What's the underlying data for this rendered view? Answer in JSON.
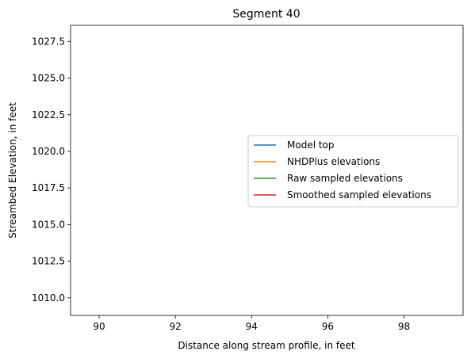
{
  "chart_data": {
    "type": "line",
    "title": "Segment 40",
    "xlabel": "Distance along stream profile, in feet",
    "ylabel": "Streambed Elevation, in feet",
    "xlim": [
      89.25,
      99.55
    ],
    "ylim": [
      1008.8,
      1028.6
    ],
    "xticks": [
      {
        "value": 90,
        "label": "90"
      },
      {
        "value": 92,
        "label": "92"
      },
      {
        "value": 94,
        "label": "94"
      },
      {
        "value": 96,
        "label": "96"
      },
      {
        "value": 98,
        "label": "98"
      }
    ],
    "yticks": [
      {
        "value": 1010.0,
        "label": "1010.0"
      },
      {
        "value": 1012.5,
        "label": "1012.5"
      },
      {
        "value": 1015.0,
        "label": "1015.0"
      },
      {
        "value": 1017.5,
        "label": "1017.5"
      },
      {
        "value": 1020.0,
        "label": "1020.0"
      },
      {
        "value": 1022.5,
        "label": "1022.5"
      },
      {
        "value": 1025.0,
        "label": "1025.0"
      },
      {
        "value": 1027.5,
        "label": "1027.5"
      }
    ],
    "grid": false,
    "legend_position": "center-right",
    "series": [
      {
        "name": "Model top",
        "color": "#1f77b4",
        "x": [],
        "y": []
      },
      {
        "name": "NHDPlus elevations",
        "color": "#ff7f0e",
        "x": [],
        "y": []
      },
      {
        "name": "Raw sampled elevations",
        "color": "#2ca02c",
        "x": [],
        "y": []
      },
      {
        "name": "Smoothed sampled elevations",
        "color": "#d62728",
        "x": [],
        "y": []
      }
    ]
  }
}
